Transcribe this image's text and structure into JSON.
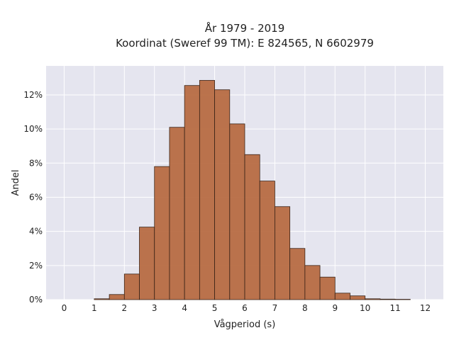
{
  "chart_data": {
    "type": "bar",
    "title": "År 1979 - 2019",
    "subtitle": "Koordinat (Sweref 99 TM): E 824565, N 6602979",
    "xlabel": "Vågperiod (s)",
    "ylabel": "Andel",
    "bin_width": 0.5,
    "x": [
      1.0,
      1.5,
      2.0,
      2.5,
      3.0,
      3.5,
      4.0,
      4.5,
      5.0,
      5.5,
      6.0,
      6.5,
      7.0,
      7.5,
      8.0,
      8.5,
      9.0,
      9.5,
      10.0,
      10.5,
      11.0
    ],
    "values": [
      0.05,
      0.3,
      1.5,
      4.25,
      7.8,
      10.1,
      12.55,
      12.85,
      12.3,
      10.3,
      8.5,
      6.95,
      5.45,
      3.0,
      2.0,
      1.32,
      0.38,
      0.22,
      0.05,
      0.03,
      0.02
    ],
    "xlim": [
      -0.6,
      12.6
    ],
    "ylim": [
      0,
      13.7
    ],
    "xticks": [
      0,
      1,
      2,
      3,
      4,
      5,
      6,
      7,
      8,
      9,
      10,
      11,
      12
    ],
    "yticks": [
      0,
      2,
      4,
      6,
      8,
      10,
      12
    ],
    "ytick_suffix": "%",
    "grid": true,
    "colors": {
      "bar_fill": "#b5653a",
      "bar_stroke": "#3a2418",
      "plot_bg": "#e5e5ef",
      "grid": "#ffffff"
    }
  }
}
